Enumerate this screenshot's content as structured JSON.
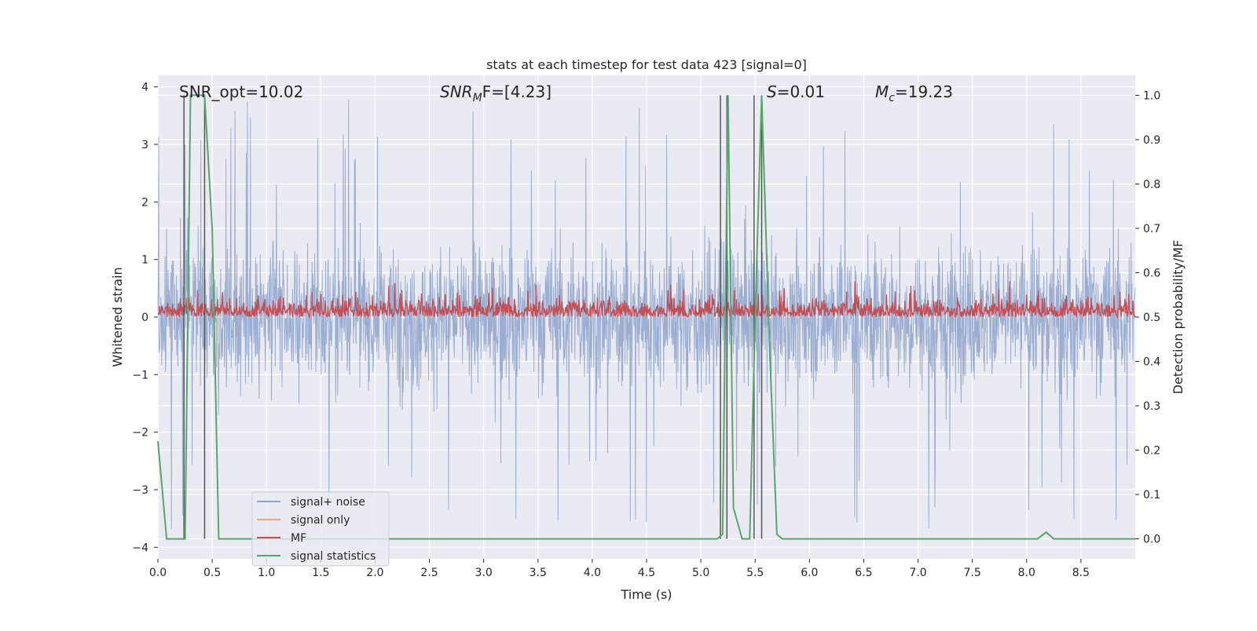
{
  "chart_data": {
    "type": "line",
    "title": "stats at each timestep for test data 423 [signal=0]",
    "xlabel": "Time (s)",
    "ylabel_left": "Whitened strain",
    "ylabel_right": "Detection probability/MF",
    "xlim": [
      0.0,
      9.0
    ],
    "ylim_left": [
      -4.2,
      4.2
    ],
    "ylim_right": [
      -0.045,
      1.045
    ],
    "grid": true,
    "legend_position": "lower-left",
    "x_ticks": [
      "0.0",
      "0.5",
      "1.0",
      "1.5",
      "2.0",
      "2.5",
      "3.0",
      "3.5",
      "4.0",
      "4.5",
      "5.0",
      "5.5",
      "6.0",
      "6.5",
      "7.0",
      "7.5",
      "8.0",
      "8.5"
    ],
    "y_ticks_left": [
      "4",
      "3",
      "2",
      "1",
      "0",
      "−1",
      "−2",
      "−3",
      "−4"
    ],
    "y_ticks_right": [
      "1.0",
      "0.9",
      "0.8",
      "0.7",
      "0.6",
      "0.5",
      "0.4",
      "0.3",
      "0.2",
      "0.1",
      "0.0"
    ],
    "annotations": [
      {
        "text": "SNR_opt=10.02",
        "x": 0.2,
        "italic_part": ""
      },
      {
        "prefix": "SNR",
        "sub": "M",
        "suffix": "F=[4.23]",
        "x": 2.6
      },
      {
        "prefix": "S",
        "sub": "",
        "suffix": "=0.01",
        "x": 5.6
      },
      {
        "prefix": "M",
        "sub": "c",
        "suffix": "=19.23",
        "x": 6.6
      }
    ],
    "series": [
      {
        "name": "signal+ noise",
        "color": "#8da3cc",
        "axis": "left",
        "description_envelope": {
          "upper_typical": 1.7,
          "lower_typical": -1.5,
          "max": 3.9,
          "min": -3.7
        }
      },
      {
        "name": "signal only",
        "color": "#e9a88d",
        "axis": "left",
        "values": []
      },
      {
        "name": "MF",
        "color": "#c44e52",
        "axis": "right",
        "envelope": {
          "baseline": 0.5,
          "typical_peak": 0.6,
          "max": 0.62
        }
      },
      {
        "name": "signal statistics",
        "color": "#55a868",
        "axis": "right",
        "points": [
          [
            0.0,
            0.22
          ],
          [
            0.08,
            0.0
          ],
          [
            0.25,
            0.0
          ],
          [
            0.3,
            1.0
          ],
          [
            0.43,
            1.0
          ],
          [
            0.5,
            0.7
          ],
          [
            0.56,
            0.0
          ],
          [
            0.7,
            0.0
          ],
          [
            5.15,
            0.0
          ],
          [
            5.2,
            0.01
          ],
          [
            5.25,
            1.0
          ],
          [
            5.3,
            0.07
          ],
          [
            5.38,
            0.0
          ],
          [
            5.45,
            0.0
          ],
          [
            5.5,
            0.5
          ],
          [
            5.56,
            1.0
          ],
          [
            5.63,
            0.45
          ],
          [
            5.7,
            0.01
          ],
          [
            5.75,
            0.0
          ],
          [
            8.1,
            0.0
          ],
          [
            8.18,
            0.015
          ],
          [
            8.25,
            0.0
          ],
          [
            9.0,
            0.0
          ]
        ]
      }
    ],
    "vertical_markers": [
      0.24,
      0.43,
      5.18,
      5.24,
      5.49,
      5.56
    ]
  }
}
